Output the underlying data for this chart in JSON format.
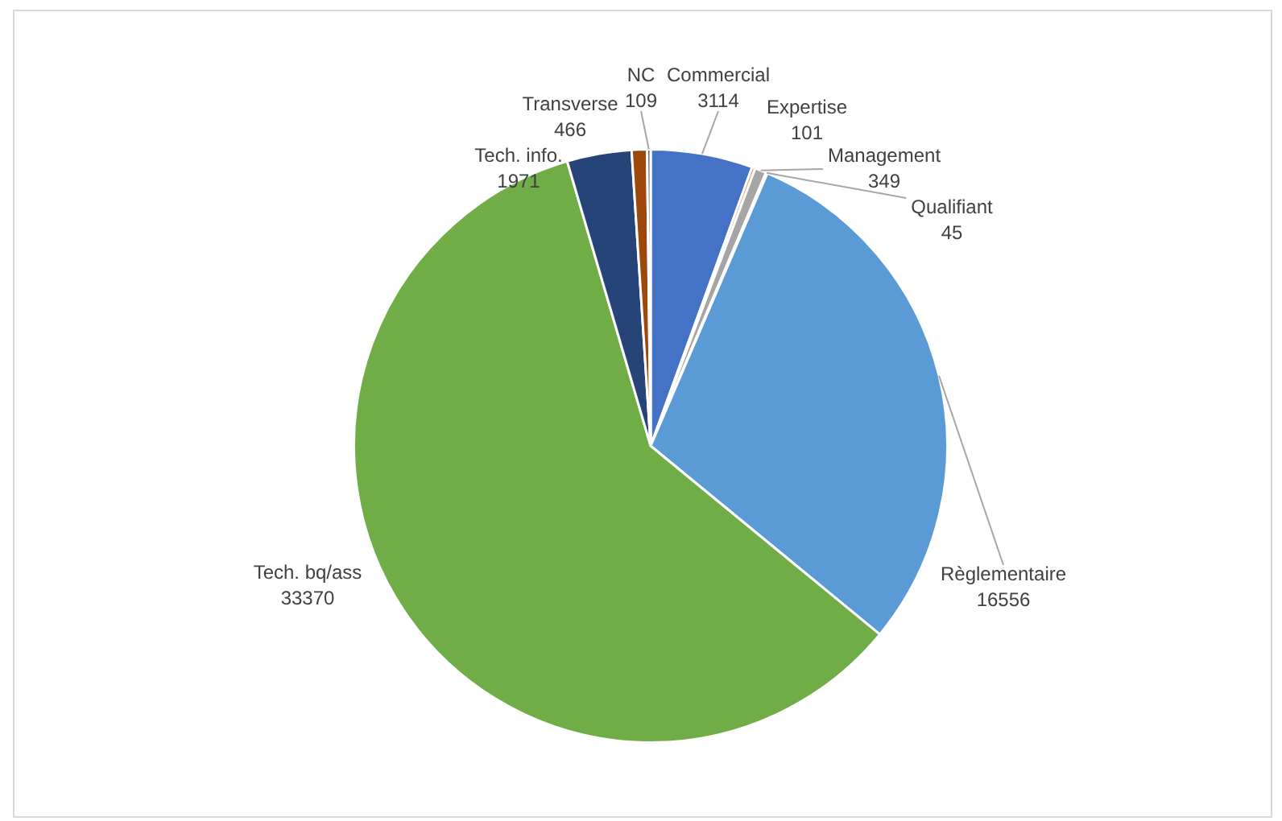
{
  "chart_data": {
    "type": "pie",
    "categories": [
      "Commercial",
      "Expertise",
      "Management",
      "Qualifiant",
      "Règlementaire",
      "Tech. bq/ass",
      "Tech. info.",
      "Transverse",
      "NC"
    ],
    "values": [
      3114,
      101,
      349,
      45,
      16556,
      33370,
      1971,
      466,
      109
    ],
    "colors": [
      "#4472c4",
      "#ed7d31",
      "#a5a5a5",
      "#ffc000",
      "#5b9bd5",
      "#70ad47",
      "#264478",
      "#9e480e",
      "#636363"
    ],
    "data_labels": true,
    "legend": false
  }
}
